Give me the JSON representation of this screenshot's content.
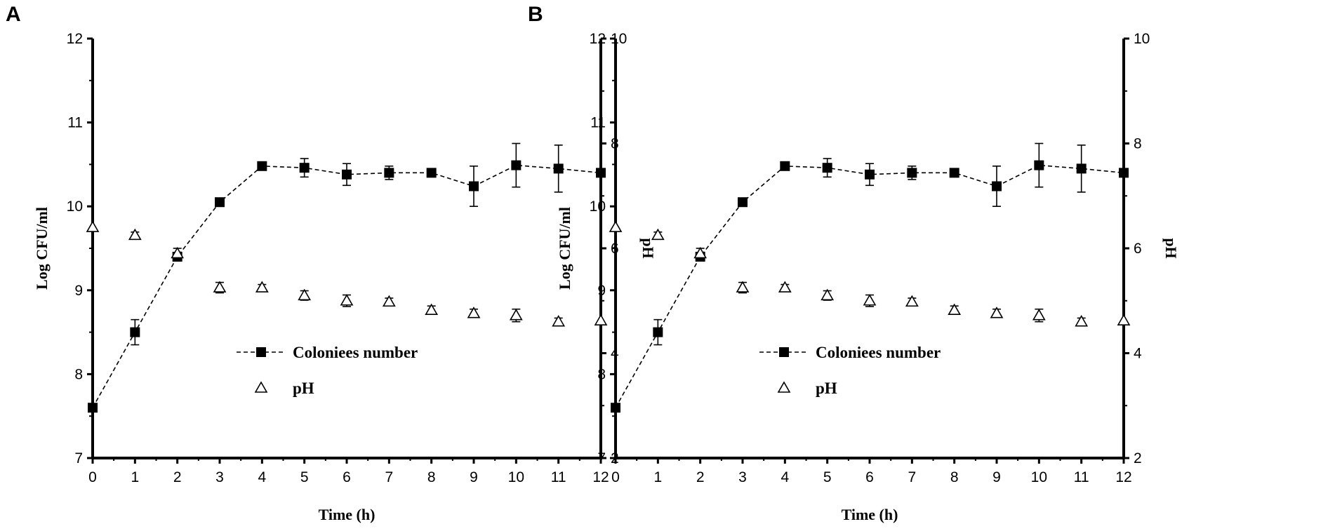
{
  "chart_data": [
    {
      "panel": "A",
      "type": "line",
      "xlabel": "Time (h)",
      "ylabel": "Log CFU/ml",
      "y2label": "pH",
      "x": [
        0,
        1,
        2,
        3,
        4,
        5,
        6,
        7,
        8,
        9,
        10,
        11,
        12
      ],
      "xlim": [
        0,
        12
      ],
      "xticks": [
        "0",
        "1",
        "2",
        "3",
        "4",
        "5",
        "6",
        "7",
        "8",
        "9",
        "10",
        "11",
        "12"
      ],
      "ylim": [
        7,
        12
      ],
      "yticks": [
        "7",
        "8",
        "9",
        "10",
        "11",
        "12"
      ],
      "y2lim": [
        2,
        10
      ],
      "y2ticks": [
        "2",
        "4",
        "6",
        "8",
        "10"
      ],
      "grid": false,
      "legend_placement": "center",
      "series": [
        {
          "name": "Coloniees number",
          "axis": "left",
          "marker": "filled-square",
          "line": "dashed",
          "color": "#000000",
          "values": [
            7.6,
            8.5,
            9.4,
            10.05,
            10.48,
            10.46,
            10.38,
            10.4,
            10.4,
            10.24,
            10.49,
            10.45,
            10.4
          ],
          "errors": [
            0.0,
            0.15,
            0.05,
            0.03,
            0.03,
            0.11,
            0.13,
            0.08,
            0.03,
            0.24,
            0.26,
            0.28,
            0.03
          ]
        },
        {
          "name": "pH",
          "axis": "right",
          "marker": "open-triangle",
          "line": "none",
          "color": "#000000",
          "values": [
            6.4,
            6.25,
            5.9,
            5.25,
            5.25,
            5.1,
            5.0,
            4.98,
            4.82,
            4.76,
            4.72,
            4.6,
            4.62
          ],
          "errors": [
            0.0,
            0.06,
            0.1,
            0.1,
            0.06,
            0.09,
            0.11,
            0.07,
            0.08,
            0.08,
            0.12,
            0.07,
            0.0
          ]
        }
      ]
    },
    {
      "panel": "B",
      "type": "line",
      "xlabel": "Time (h)",
      "ylabel": "Log CFU/ml",
      "y2label": "pH",
      "x": [
        0,
        1,
        2,
        3,
        4,
        5,
        6,
        7,
        8,
        9,
        10,
        11,
        12
      ],
      "xlim": [
        0,
        12
      ],
      "xticks": [
        "0",
        "1",
        "2",
        "3",
        "4",
        "5",
        "6",
        "7",
        "8",
        "9",
        "10",
        "11",
        "12"
      ],
      "ylim": [
        7,
        12
      ],
      "yticks": [
        "7",
        "8",
        "9",
        "10",
        "11",
        "12"
      ],
      "y2lim": [
        2,
        10
      ],
      "y2ticks": [
        "2",
        "4",
        "6",
        "8",
        "10"
      ],
      "grid": false,
      "legend_placement": "center",
      "series": [
        {
          "name": "Coloniees number",
          "axis": "left",
          "marker": "filled-square",
          "line": "dashed",
          "color": "#000000",
          "values": [
            7.6,
            8.5,
            9.4,
            10.05,
            10.48,
            10.46,
            10.38,
            10.4,
            10.4,
            10.24,
            10.49,
            10.45,
            10.4
          ],
          "errors": [
            0.0,
            0.15,
            0.05,
            0.03,
            0.03,
            0.11,
            0.13,
            0.08,
            0.03,
            0.24,
            0.26,
            0.28,
            0.03
          ]
        },
        {
          "name": "pH",
          "axis": "right",
          "marker": "open-triangle",
          "line": "none",
          "color": "#000000",
          "values": [
            6.4,
            6.25,
            5.9,
            5.25,
            5.25,
            5.1,
            5.0,
            4.98,
            4.82,
            4.76,
            4.72,
            4.6,
            4.62
          ],
          "errors": [
            0.0,
            0.06,
            0.1,
            0.1,
            0.06,
            0.09,
            0.11,
            0.07,
            0.08,
            0.08,
            0.12,
            0.07,
            0.0
          ]
        }
      ]
    }
  ]
}
